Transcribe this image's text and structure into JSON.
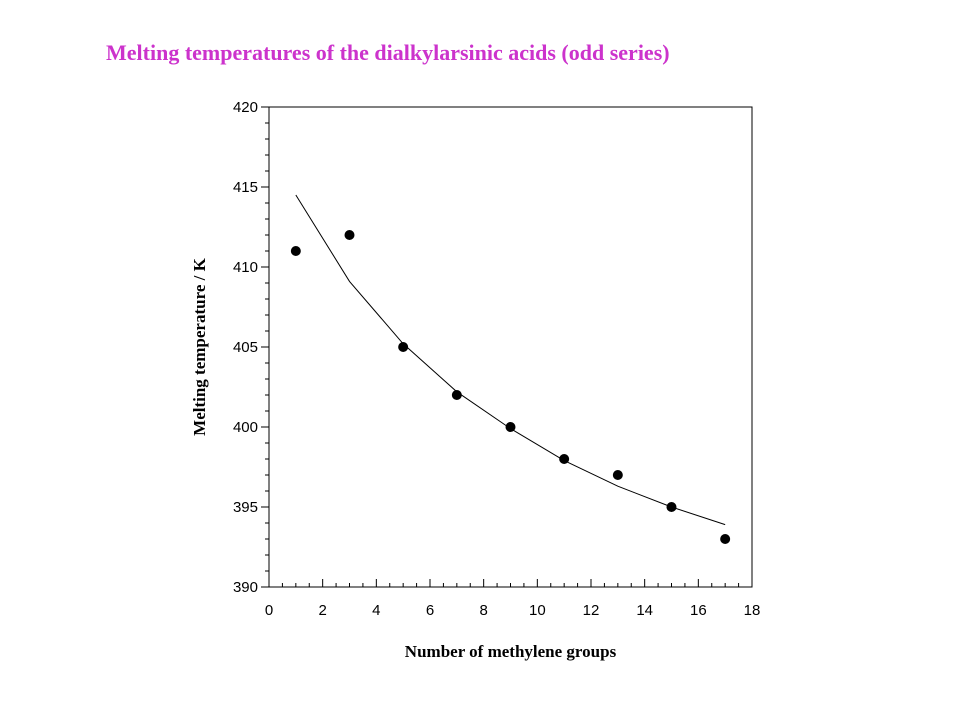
{
  "title": "Melting temperatures of the dialkylarsinic acids (odd series)",
  "title_color": "#cc33cc",
  "chart_data": {
    "type": "scatter",
    "title": "Melting temperatures of the dialkylarsinic acids (odd series)",
    "xlabel": "Number of methylene groups",
    "ylabel": "Melting temperature / K",
    "xlim": [
      0,
      18
    ],
    "ylim": [
      390,
      420
    ],
    "xticks": [
      0,
      2,
      4,
      6,
      8,
      10,
      12,
      14,
      16,
      18
    ],
    "yticks": [
      390,
      395,
      400,
      405,
      410,
      415,
      420
    ],
    "grid": false,
    "series": [
      {
        "type": "scatter",
        "x": [
          1,
          3,
          5,
          7,
          9,
          11,
          13,
          15,
          17
        ],
        "y": [
          411,
          412,
          405,
          402,
          400,
          398,
          397,
          395,
          393
        ]
      },
      {
        "type": "line",
        "x": [
          1,
          3,
          5,
          7,
          9,
          11,
          13,
          15,
          17
        ],
        "y": [
          414.5,
          409.1,
          405.2,
          402.2,
          399.9,
          397.9,
          396.3,
          395.0,
          393.9
        ]
      }
    ]
  }
}
